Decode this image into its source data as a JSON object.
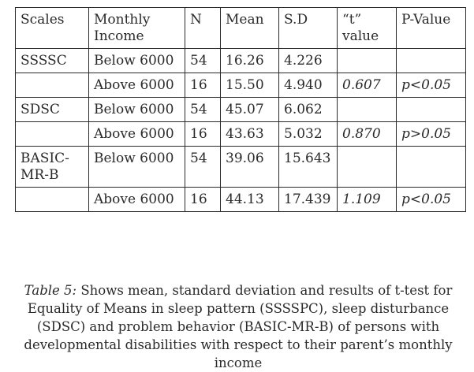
{
  "table": {
    "headers": {
      "scales": "Scales",
      "income": "Monthly Income",
      "n": "N",
      "mean": "Mean",
      "sd": "S.D",
      "t": "“t” value",
      "p": "P-Value"
    },
    "rows": [
      {
        "scale": "SSSSC",
        "income": "Below 6000",
        "n": "54",
        "mean": "16.26",
        "sd": "4.226",
        "t": "",
        "p": ""
      },
      {
        "scale": "",
        "income": "Above 6000",
        "n": "16",
        "mean": "15.50",
        "sd": "4.940",
        "t": "0.607",
        "p": "p<0.05"
      },
      {
        "scale": "SDSC",
        "income": "Below 6000",
        "n": "54",
        "mean": "45.07",
        "sd": "6.062",
        "t": "",
        "p": ""
      },
      {
        "scale": "",
        "income": "Above 6000",
        "n": "16",
        "mean": "43.63",
        "sd": "5.032",
        "t": "0.870",
        "p": "p>0.05"
      },
      {
        "scale": "BASIC-MR-B",
        "income": "Below 6000",
        "n": "54",
        "mean": "39.06",
        "sd": "15.643",
        "t": "",
        "p": ""
      },
      {
        "scale": "",
        "income": "Above 6000",
        "n": "16",
        "mean": "44.13",
        "sd": "17.439",
        "t": "1.109",
        "p": "p<0.05"
      }
    ]
  },
  "caption": {
    "label": "Table 5:",
    "text": " Shows mean, standard deviation and results of t-test for Equality of Means in sleep pattern (SSSSPC), sleep disturbance (SDSC) and problem behavior (BASIC-MR-B) of persons with developmental disabilities with respect to their parent’s monthly income"
  }
}
